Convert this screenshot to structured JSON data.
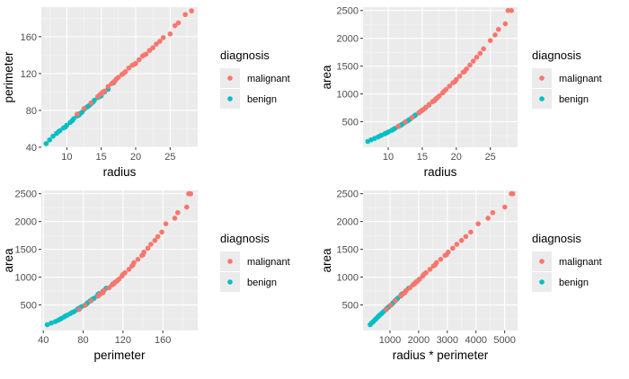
{
  "colors": {
    "malignant": "#F8766D",
    "benign": "#00BFC4"
  },
  "chart_data": [
    {
      "type": "scatter",
      "xlabel": "radius",
      "ylabel": "perimeter",
      "xlim": [
        6.3,
        29.0
      ],
      "ylim": [
        40,
        192
      ],
      "xticks": [
        10,
        15,
        20,
        25
      ],
      "yticks": [
        40,
        80,
        120,
        160
      ],
      "ytick_labels": [
        "40",
        "80",
        "120",
        "160"
      ],
      "legend": {
        "title": "diagnosis",
        "labels": [
          "malignant",
          "benign"
        ],
        "position": "right"
      },
      "series": [
        {
          "name": "malignant",
          "x": [
            11.5,
            12.5,
            13.5,
            14.5,
            15,
            15.5,
            16,
            16.5,
            17,
            17.5,
            18,
            18.5,
            19,
            19.5,
            20,
            20.5,
            21,
            21.5,
            22,
            22.5,
            23,
            23.5,
            24,
            25,
            25.7,
            26.2,
            27.2,
            28.1,
            15.2,
            16.8,
            18.2,
            19.8,
            21.2,
            14.8,
            17.2
          ],
          "y": [
            76,
            82,
            88,
            95,
            98,
            101,
            106,
            109,
            112,
            116,
            119,
            122,
            126,
            129,
            131,
            135,
            139,
            141,
            145,
            148,
            152,
            155,
            159,
            163,
            172,
            175,
            184,
            188,
            100,
            111,
            120,
            130,
            140,
            97,
            114
          ]
        },
        {
          "name": "benign",
          "x": [
            7,
            7.5,
            8,
            8.5,
            9,
            9.5,
            10,
            10.5,
            11,
            11.5,
            12,
            12.5,
            13,
            13.5,
            14,
            14.5,
            15,
            15.5,
            16,
            16.8,
            17.2,
            9.8,
            10.8,
            11.8,
            12.8,
            13.8,
            14.8,
            8.8,
            12.2,
            13.2
          ],
          "y": [
            44,
            48,
            52,
            55,
            58,
            61,
            64,
            67,
            71,
            74,
            77,
            81,
            84,
            87,
            91,
            94,
            96,
            100,
            103,
            110,
            114,
            62,
            69,
            75,
            83,
            89,
            95,
            57,
            78,
            85
          ]
        }
      ]
    },
    {
      "type": "scatter",
      "xlabel": "radius",
      "ylabel": "area",
      "xlim": [
        6.3,
        29.0
      ],
      "ylim": [
        40,
        2560
      ],
      "xticks": [
        10,
        15,
        20,
        25
      ],
      "yticks": [
        500,
        1000,
        1500,
        2000,
        2500
      ],
      "ytick_labels": [
        "500",
        "1000",
        "1500",
        "2000",
        "2500"
      ],
      "legend": {
        "title": "diagnosis",
        "labels": [
          "malignant",
          "benign"
        ],
        "position": "right"
      },
      "series": [
        {
          "name": "malignant",
          "x": [
            11.5,
            12.5,
            13.5,
            14.5,
            15,
            15.5,
            16,
            16.5,
            17,
            17.5,
            18,
            18.5,
            19,
            19.5,
            20,
            20.5,
            21,
            21.5,
            22,
            22.5,
            23,
            23.5,
            24,
            25,
            25.7,
            26.2,
            27.2,
            28.1,
            15.2,
            16.8,
            18.2,
            19.8,
            21.2,
            14.8,
            17.2,
            27.6
          ],
          "y": [
            420,
            495,
            575,
            660,
            710,
            760,
            810,
            860,
            910,
            965,
            1020,
            1080,
            1140,
            1200,
            1260,
            1320,
            1390,
            1450,
            1520,
            1590,
            1660,
            1730,
            1810,
            1960,
            2060,
            2160,
            2260,
            2500,
            720,
            880,
            1050,
            1220,
            1400,
            690,
            930,
            2500
          ]
        },
        {
          "name": "benign",
          "x": [
            7,
            7.5,
            8,
            8.5,
            9,
            9.5,
            10,
            10.5,
            11,
            11.5,
            12,
            12.5,
            13,
            13.5,
            14,
            14.5,
            15,
            15.5,
            16,
            16.8,
            17.2,
            9.8,
            10.8,
            11.8,
            12.8,
            13.8,
            14.8,
            8.8,
            12.2,
            13.2
          ],
          "y": [
            145,
            175,
            200,
            225,
            255,
            285,
            315,
            345,
            380,
            415,
            450,
            490,
            530,
            575,
            620,
            660,
            705,
            750,
            800,
            880,
            930,
            300,
            365,
            435,
            510,
            600,
            690,
            245,
            465,
            545
          ]
        }
      ]
    },
    {
      "type": "scatter",
      "xlabel": "perimeter",
      "ylabel": "area",
      "xlim": [
        38,
        195
      ],
      "ylim": [
        40,
        2560
      ],
      "xticks": [
        40,
        80,
        120,
        160
      ],
      "yticks": [
        500,
        1000,
        1500,
        2000,
        2500
      ],
      "ytick_labels": [
        "500",
        "1000",
        "1500",
        "2000",
        "2500"
      ],
      "legend": {
        "title": "diagnosis",
        "labels": [
          "malignant",
          "benign"
        ],
        "position": "right"
      },
      "series": [
        {
          "name": "malignant",
          "x": [
            76,
            82,
            88,
            95,
            98,
            101,
            106,
            109,
            112,
            116,
            119,
            122,
            126,
            129,
            131,
            135,
            139,
            141,
            145,
            148,
            152,
            155,
            159,
            163,
            172,
            175,
            184,
            188,
            100,
            111,
            120,
            130,
            140,
            97,
            114,
            186
          ],
          "y": [
            420,
            495,
            575,
            660,
            710,
            760,
            810,
            860,
            910,
            965,
            1020,
            1080,
            1140,
            1200,
            1260,
            1320,
            1390,
            1450,
            1520,
            1590,
            1660,
            1730,
            1810,
            1960,
            2060,
            2160,
            2260,
            2500,
            720,
            880,
            1050,
            1220,
            1400,
            690,
            930,
            2500
          ]
        },
        {
          "name": "benign",
          "x": [
            44,
            48,
            52,
            55,
            58,
            61,
            64,
            67,
            71,
            74,
            77,
            81,
            84,
            87,
            91,
            94,
            96,
            100,
            103,
            110,
            114,
            62,
            69,
            75,
            83,
            89,
            95,
            57,
            78,
            85
          ],
          "y": [
            145,
            175,
            200,
            225,
            255,
            285,
            315,
            345,
            380,
            415,
            450,
            490,
            530,
            575,
            620,
            660,
            705,
            750,
            800,
            880,
            930,
            300,
            365,
            435,
            510,
            600,
            690,
            245,
            465,
            545
          ]
        }
      ]
    },
    {
      "type": "scatter",
      "xlabel": "radius * perimeter",
      "ylabel": "area",
      "xlim": [
        60,
        5450
      ],
      "ylim": [
        40,
        2560
      ],
      "xticks": [
        1000,
        2000,
        3000,
        4000,
        5000
      ],
      "yticks": [
        500,
        1000,
        1500,
        2000,
        2500
      ],
      "ytick_labels": [
        "500",
        "1000",
        "1500",
        "2000",
        "2500"
      ],
      "legend": {
        "title": "diagnosis",
        "labels": [
          "malignant",
          "benign"
        ],
        "position": "right"
      },
      "series": [
        {
          "name": "malignant",
          "x": [
            874,
            1025,
            1188,
            1378,
            1470,
            1566,
            1696,
            1799,
            1904,
            2030,
            2142,
            2257,
            2394,
            2516,
            2620,
            2768,
            2919,
            3032,
            3190,
            3330,
            3496,
            3643,
            3816,
            4075,
            4420,
            4585,
            5005,
            5283,
            1520,
            1865,
            2184,
            2574,
            2968,
            1435,
            1961,
            5230
          ],
          "y": [
            420,
            495,
            575,
            660,
            710,
            760,
            810,
            860,
            910,
            965,
            1020,
            1080,
            1140,
            1200,
            1260,
            1320,
            1390,
            1450,
            1520,
            1590,
            1660,
            1730,
            1810,
            1960,
            2060,
            2160,
            2260,
            2500,
            720,
            880,
            1050,
            1220,
            1400,
            690,
            930,
            2500
          ]
        },
        {
          "name": "benign",
          "x": [
            308,
            360,
            416,
            468,
            522,
            580,
            640,
            704,
            781,
            851,
            924,
            1013,
            1092,
            1175,
            1274,
            1363,
            1440,
            1550,
            1648,
            1848,
            1961,
            608,
            745,
            885,
            1062,
            1228,
            1406,
            502,
            952,
            1122
          ],
          "y": [
            145,
            175,
            200,
            225,
            255,
            285,
            315,
            345,
            380,
            415,
            450,
            490,
            530,
            575,
            620,
            660,
            705,
            750,
            800,
            880,
            930,
            300,
            365,
            435,
            510,
            600,
            690,
            245,
            465,
            545
          ]
        }
      ]
    }
  ]
}
